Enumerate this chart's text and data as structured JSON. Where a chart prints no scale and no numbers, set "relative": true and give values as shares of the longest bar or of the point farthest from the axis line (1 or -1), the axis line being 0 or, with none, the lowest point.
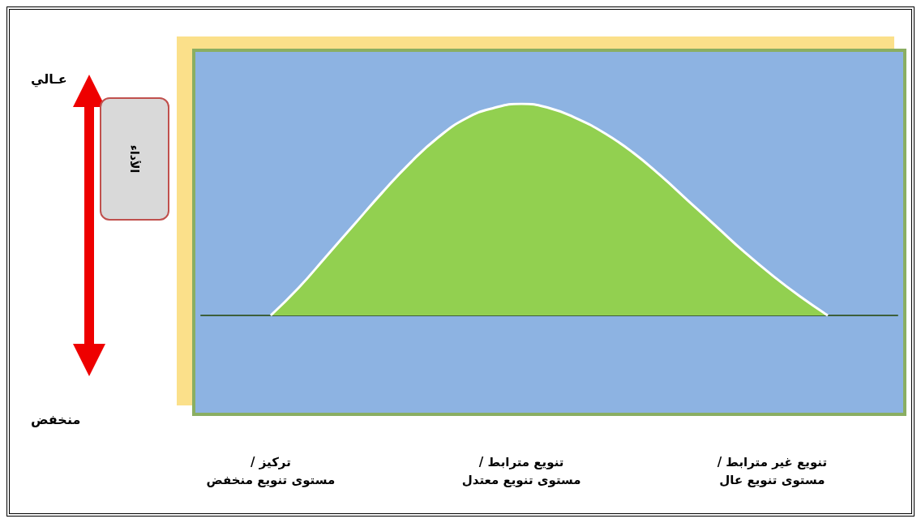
{
  "chart_data": {
    "type": "area",
    "relative": true,
    "annotations": [
      "عـالي",
      "الأداء",
      "منخفض"
    ],
    "categories": [
      null,
      null,
      "تركيز /\nمستوى تنويع منخفض",
      null,
      null,
      null,
      null,
      null,
      null,
      null,
      null,
      "تنويع مترابط /\nمستوى تنويع معتدل",
      null,
      null,
      null,
      null,
      null,
      null,
      null,
      null,
      "تنويع غير مترابط /\nمستوى تنويع عال",
      null,
      null,
      null,
      null
    ],
    "series": [
      {
        "color": "#92d050",
        "values": [
          null,
          null,
          0,
          0.13,
          0.28,
          0.43,
          0.58,
          0.72,
          0.84,
          0.93,
          0.98,
          1,
          0.98,
          0.93,
          0.86,
          0.77,
          0.66,
          0.54,
          0.42,
          0.3,
          0.19,
          0.09,
          0,
          null,
          null
        ]
      }
    ],
    "grid": false,
    "marker": "none"
  }
}
